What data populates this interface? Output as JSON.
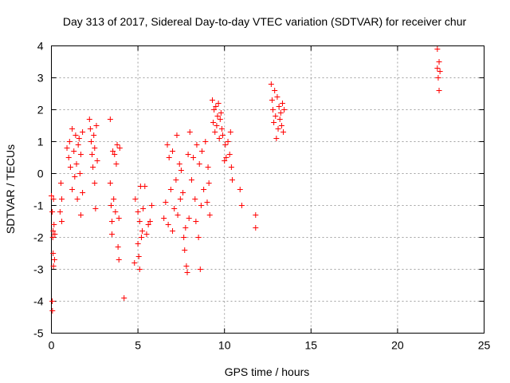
{
  "chart_data": {
    "type": "scatter",
    "title": "Day 313 of 2017, Sidereal Day-to-day VTEC variation (SDTVAR) for receiver chur",
    "xlabel": "GPS time / hours",
    "ylabel": "SDTVAR / TECUs",
    "xlim": [
      0,
      25
    ],
    "ylim": [
      -5,
      4
    ],
    "xticks": [
      0,
      5,
      10,
      15,
      20,
      25
    ],
    "yticks": [
      -5,
      -4,
      -3,
      -2,
      -1,
      0,
      1,
      2,
      3,
      4
    ],
    "grid": true,
    "marker": "+",
    "color": "#ff0000",
    "series": [
      {
        "name": "SDTVAR",
        "points": [
          [
            0.0,
            -0.7
          ],
          [
            0.05,
            -1.2
          ],
          [
            0.08,
            -2.0
          ],
          [
            0.1,
            -2.5
          ],
          [
            0.12,
            -2.9
          ],
          [
            0.05,
            -4.0
          ],
          [
            0.06,
            -4.3
          ],
          [
            0.1,
            -1.8
          ],
          [
            0.15,
            -1.6
          ],
          [
            0.18,
            -2.7
          ],
          [
            0.2,
            -1.9
          ],
          [
            0.12,
            -0.8
          ],
          [
            0.5,
            -1.2
          ],
          [
            0.55,
            -0.3
          ],
          [
            0.6,
            -1.5
          ],
          [
            0.6,
            -0.8
          ],
          [
            0.9,
            0.8
          ],
          [
            1.0,
            0.5
          ],
          [
            1.05,
            1.0
          ],
          [
            1.1,
            0.2
          ],
          [
            1.2,
            -0.5
          ],
          [
            1.2,
            1.4
          ],
          [
            1.3,
            0.7
          ],
          [
            1.35,
            -0.1
          ],
          [
            1.4,
            1.2
          ],
          [
            1.45,
            0.3
          ],
          [
            1.5,
            -0.8
          ],
          [
            1.55,
            0.9
          ],
          [
            1.6,
            1.1
          ],
          [
            1.65,
            0.0
          ],
          [
            1.7,
            -1.3
          ],
          [
            1.7,
            0.6
          ],
          [
            1.8,
            -0.6
          ],
          [
            1.8,
            1.3
          ],
          [
            2.2,
            1.7
          ],
          [
            2.25,
            1.4
          ],
          [
            2.3,
            1.0
          ],
          [
            2.35,
            0.6
          ],
          [
            2.4,
            0.2
          ],
          [
            2.45,
            1.2
          ],
          [
            2.5,
            -0.3
          ],
          [
            2.5,
            0.8
          ],
          [
            2.55,
            -1.1
          ],
          [
            2.6,
            1.5
          ],
          [
            2.65,
            0.4
          ],
          [
            3.4,
            1.7
          ],
          [
            3.4,
            -0.3
          ],
          [
            3.45,
            -1.0
          ],
          [
            3.5,
            -1.5
          ],
          [
            3.5,
            -1.9
          ],
          [
            3.55,
            0.7
          ],
          [
            3.6,
            -0.8
          ],
          [
            3.65,
            0.6
          ],
          [
            3.7,
            -1.2
          ],
          [
            3.75,
            0.3
          ],
          [
            3.8,
            0.9
          ],
          [
            3.85,
            -2.3
          ],
          [
            3.9,
            -1.4
          ],
          [
            3.9,
            -2.7
          ],
          [
            3.95,
            0.8
          ],
          [
            4.2,
            -3.9
          ],
          [
            4.8,
            -2.8
          ],
          [
            4.85,
            -0.8
          ],
          [
            5.0,
            -1.2
          ],
          [
            5.0,
            -2.2
          ],
          [
            5.05,
            -2.6
          ],
          [
            5.1,
            -1.5
          ],
          [
            5.1,
            -3.0
          ],
          [
            5.15,
            -0.4
          ],
          [
            5.2,
            -2.0
          ],
          [
            5.25,
            -1.8
          ],
          [
            5.3,
            -1.1
          ],
          [
            5.4,
            -0.4
          ],
          [
            5.5,
            -1.9
          ],
          [
            5.6,
            -1.6
          ],
          [
            5.7,
            -1.5
          ],
          [
            5.8,
            -1.0
          ],
          [
            6.5,
            -1.4
          ],
          [
            6.6,
            -0.9
          ],
          [
            6.7,
            0.9
          ],
          [
            6.75,
            -1.6
          ],
          [
            6.8,
            0.5
          ],
          [
            6.9,
            -0.5
          ],
          [
            7.0,
            -1.8
          ],
          [
            7.0,
            0.7
          ],
          [
            7.1,
            -1.1
          ],
          [
            7.2,
            -0.2
          ],
          [
            7.25,
            1.2
          ],
          [
            7.3,
            -1.3
          ],
          [
            7.4,
            0.3
          ],
          [
            7.45,
            -0.8
          ],
          [
            7.5,
            0.1
          ],
          [
            7.6,
            -0.6
          ],
          [
            7.65,
            -2.0
          ],
          [
            7.7,
            -2.4
          ],
          [
            7.75,
            -1.7
          ],
          [
            7.8,
            -2.9
          ],
          [
            7.85,
            -3.1
          ],
          [
            7.9,
            0.6
          ],
          [
            7.95,
            -1.4
          ],
          [
            8.0,
            1.3
          ],
          [
            8.1,
            -0.2
          ],
          [
            8.2,
            0.5
          ],
          [
            8.3,
            -0.8
          ],
          [
            8.35,
            -1.5
          ],
          [
            8.4,
            0.9
          ],
          [
            8.5,
            -2.0
          ],
          [
            8.55,
            0.3
          ],
          [
            8.6,
            -3.0
          ],
          [
            8.65,
            -1.0
          ],
          [
            8.7,
            0.7
          ],
          [
            8.8,
            -0.5
          ],
          [
            8.9,
            1.0
          ],
          [
            9.0,
            -0.9
          ],
          [
            9.05,
            0.2
          ],
          [
            9.1,
            -0.3
          ],
          [
            9.15,
            -1.3
          ],
          [
            9.3,
            2.3
          ],
          [
            9.35,
            1.6
          ],
          [
            9.4,
            2.0
          ],
          [
            9.45,
            1.3
          ],
          [
            9.5,
            2.1
          ],
          [
            9.55,
            1.5
          ],
          [
            9.6,
            1.8
          ],
          [
            9.65,
            2.2
          ],
          [
            9.7,
            1.1
          ],
          [
            9.75,
            1.7
          ],
          [
            9.8,
            1.9
          ],
          [
            9.85,
            1.4
          ],
          [
            9.9,
            1.2
          ],
          [
            10.0,
            0.4
          ],
          [
            10.05,
            0.9
          ],
          [
            10.1,
            0.5
          ],
          [
            10.2,
            1.0
          ],
          [
            10.3,
            0.6
          ],
          [
            10.35,
            1.3
          ],
          [
            10.4,
            0.2
          ],
          [
            10.45,
            -0.2
          ],
          [
            10.9,
            -0.5
          ],
          [
            11.0,
            -1.0
          ],
          [
            11.8,
            -1.3
          ],
          [
            11.8,
            -1.7
          ],
          [
            12.7,
            2.8
          ],
          [
            12.75,
            2.3
          ],
          [
            12.8,
            2.0
          ],
          [
            12.85,
            1.6
          ],
          [
            12.9,
            2.6
          ],
          [
            12.95,
            1.8
          ],
          [
            13.0,
            1.1
          ],
          [
            13.05,
            2.4
          ],
          [
            13.1,
            1.4
          ],
          [
            13.15,
            2.1
          ],
          [
            13.2,
            1.7
          ],
          [
            13.25,
            1.9
          ],
          [
            13.3,
            1.5
          ],
          [
            13.35,
            2.2
          ],
          [
            13.4,
            1.3
          ],
          [
            13.45,
            2.0
          ],
          [
            22.3,
            3.9
          ],
          [
            22.3,
            3.3
          ],
          [
            22.35,
            3.0
          ],
          [
            22.4,
            2.6
          ],
          [
            22.4,
            3.5
          ],
          [
            22.45,
            3.2
          ]
        ]
      }
    ]
  }
}
